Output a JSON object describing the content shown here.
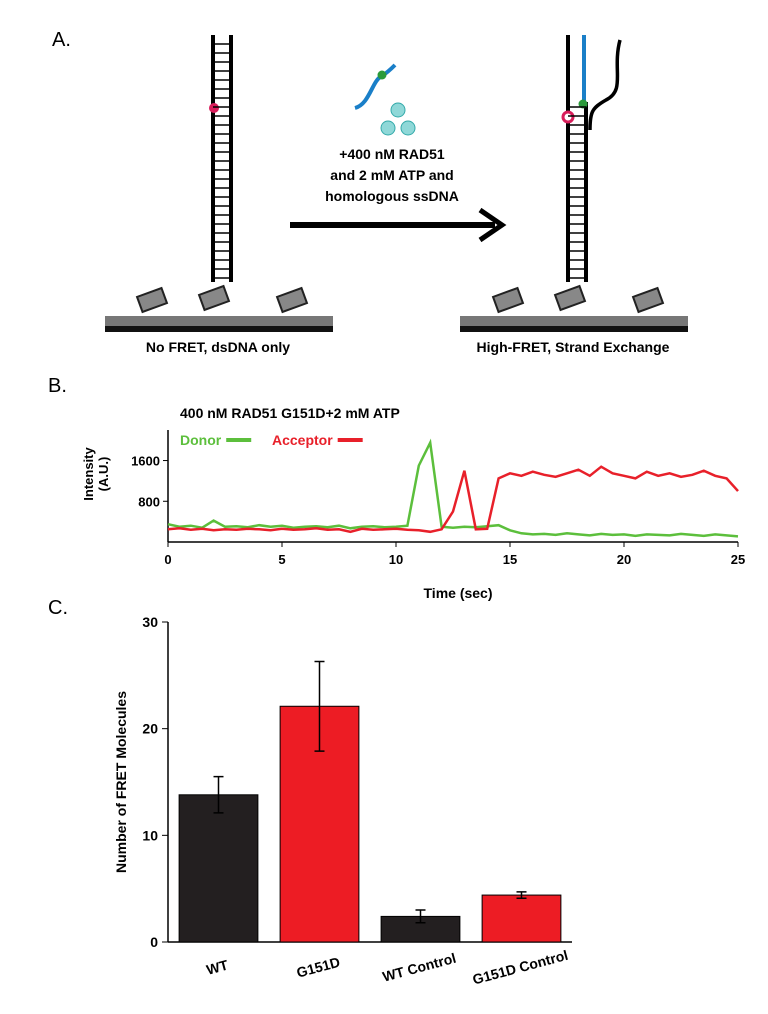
{
  "panel_labels": [
    "A.",
    "B.",
    "C."
  ],
  "diagram": {
    "arrow_label": [
      "+400 nM RAD51",
      "and 2 mM ATP and",
      "homologous ssDNA"
    ],
    "left_caption": "No FRET, dsDNA only",
    "right_caption": "High-FRET, Strand Exchange"
  },
  "chart_data": [
    {
      "type": "line",
      "title": "400 nM RAD51 G151D+2 mM ATP",
      "y_label": [
        "Intensity",
        "(A.U.)"
      ],
      "x_label": "Time (sec)",
      "xlim": [
        0,
        25
      ],
      "xticks": [
        0,
        5,
        10,
        15,
        20,
        25
      ],
      "ylim": [
        0,
        2200
      ],
      "yticks": [
        800,
        1600
      ],
      "x": [
        0,
        0.5,
        1,
        1.5,
        2,
        2.5,
        3,
        3.5,
        4,
        4.5,
        5,
        5.5,
        6,
        6.5,
        7,
        7.5,
        8,
        8.5,
        9,
        9.5,
        10,
        10.5,
        11,
        11.5,
        12,
        12.5,
        13,
        13.5,
        14,
        14.5,
        15,
        15.5,
        16,
        16.5,
        17,
        17.5,
        18,
        18.5,
        19,
        19.5,
        20,
        20.5,
        21,
        21.5,
        22,
        22.5,
        23,
        23.5,
        24,
        24.5,
        25
      ],
      "series": [
        {
          "name": "Donor",
          "color": "#5cbf3c",
          "values": [
            350,
            300,
            320,
            280,
            420,
            300,
            310,
            290,
            330,
            300,
            320,
            280,
            300,
            310,
            290,
            320,
            270,
            300,
            310,
            290,
            300,
            320,
            1500,
            1950,
            300,
            280,
            300,
            290,
            310,
            330,
            230,
            170,
            150,
            160,
            140,
            170,
            150,
            130,
            160,
            140,
            150,
            120,
            150,
            140,
            130,
            160,
            140,
            120,
            150,
            130,
            110
          ]
        },
        {
          "name": "Acceptor",
          "color": "#e8202a",
          "values": [
            250,
            270,
            240,
            260,
            230,
            250,
            240,
            260,
            250,
            230,
            260,
            240,
            250,
            270,
            240,
            250,
            200,
            260,
            240,
            250,
            260,
            240,
            230,
            200,
            250,
            600,
            1400,
            250,
            260,
            1250,
            1350,
            1300,
            1380,
            1320,
            1280,
            1350,
            1420,
            1300,
            1480,
            1350,
            1300,
            1250,
            1380,
            1300,
            1350,
            1280,
            1320,
            1400,
            1300,
            1250,
            1000
          ]
        }
      ]
    },
    {
      "type": "bar",
      "y_label": "Number of FRET Molecules",
      "categories": [
        "WT",
        "G151D",
        "WT Control",
        "G151D Control"
      ],
      "values": [
        13.8,
        22.1,
        2.4,
        4.4
      ],
      "errors": [
        1.7,
        4.2,
        0.6,
        0.3
      ],
      "colors": [
        "#231f20",
        "#ed1c24",
        "#231f20",
        "#ed1c24"
      ],
      "ylim": [
        0,
        30
      ],
      "yticks": [
        0,
        10,
        20,
        30
      ]
    }
  ]
}
